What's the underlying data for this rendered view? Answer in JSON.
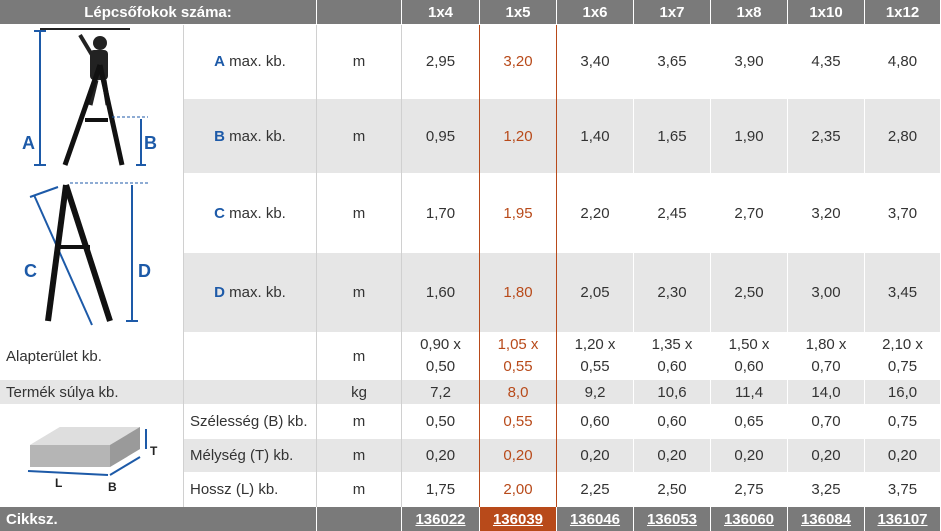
{
  "header": {
    "title": "Lépcsőfokok száma:",
    "sizes": [
      "1x4",
      "1x5",
      "1x6",
      "1x7",
      "1x8",
      "1x10",
      "1x12"
    ]
  },
  "diagram_labels": {
    "A": "A",
    "B": "B",
    "C": "C",
    "D": "D",
    "T": "T",
    "L": "L",
    "Bbox": "B"
  },
  "rows": [
    {
      "letter": "A",
      "label": " max. kb.",
      "unit": "m",
      "values": [
        "2,95",
        "3,20",
        "3,40",
        "3,65",
        "3,90",
        "4,35",
        "4,80"
      ]
    },
    {
      "letter": "B",
      "label": " max. kb.",
      "unit": "m",
      "values": [
        "0,95",
        "1,20",
        "1,40",
        "1,65",
        "1,90",
        "2,35",
        "2,80"
      ]
    },
    {
      "letter": "C",
      "label": " max. kb.",
      "unit": "m",
      "values": [
        "1,70",
        "1,95",
        "2,20",
        "2,45",
        "2,70",
        "3,20",
        "3,70"
      ]
    },
    {
      "letter": "D",
      "label": " max. kb.",
      "unit": "m",
      "values": [
        "1,60",
        "1,80",
        "2,05",
        "2,30",
        "2,50",
        "3,00",
        "3,45"
      ]
    }
  ],
  "area": {
    "label": "Alapterület kb.",
    "unit": "m",
    "values": [
      [
        "0,90 x",
        "0,50"
      ],
      [
        "1,05 x",
        "0,55"
      ],
      [
        "1,20 x",
        "0,55"
      ],
      [
        "1,35 x",
        "0,60"
      ],
      [
        "1,50 x",
        "0,60"
      ],
      [
        "1,80 x",
        "0,70"
      ],
      [
        "2,10 x",
        "0,75"
      ]
    ]
  },
  "weight": {
    "label": "Termék súlya kb.",
    "unit": "kg",
    "values": [
      "7,2",
      "8,0",
      "9,2",
      "10,6",
      "11,4",
      "14,0",
      "16,0"
    ]
  },
  "package": [
    {
      "label": "Szélesség (B) kb.",
      "unit": "m",
      "values": [
        "0,50",
        "0,55",
        "0,60",
        "0,60",
        "0,65",
        "0,70",
        "0,75"
      ]
    },
    {
      "label": "Mélység (T) kb.",
      "unit": "m",
      "values": [
        "0,20",
        "0,20",
        "0,20",
        "0,20",
        "0,20",
        "0,20",
        "0,20"
      ]
    },
    {
      "label": "Hossz (L) kb.",
      "unit": "m",
      "values": [
        "1,75",
        "2,00",
        "2,25",
        "2,50",
        "2,75",
        "3,25",
        "3,75"
      ]
    }
  ],
  "codes": {
    "label": "Cikksz.",
    "values": [
      "136022",
      "136039",
      "136046",
      "136053",
      "136060",
      "136084",
      "136107"
    ]
  },
  "colors": {
    "header": "#7a7a7a",
    "selected": "#b84a1a",
    "selected_bg": "#b84a1a",
    "accent": "#1d5aa8",
    "stripe": "#e6e6e6"
  }
}
